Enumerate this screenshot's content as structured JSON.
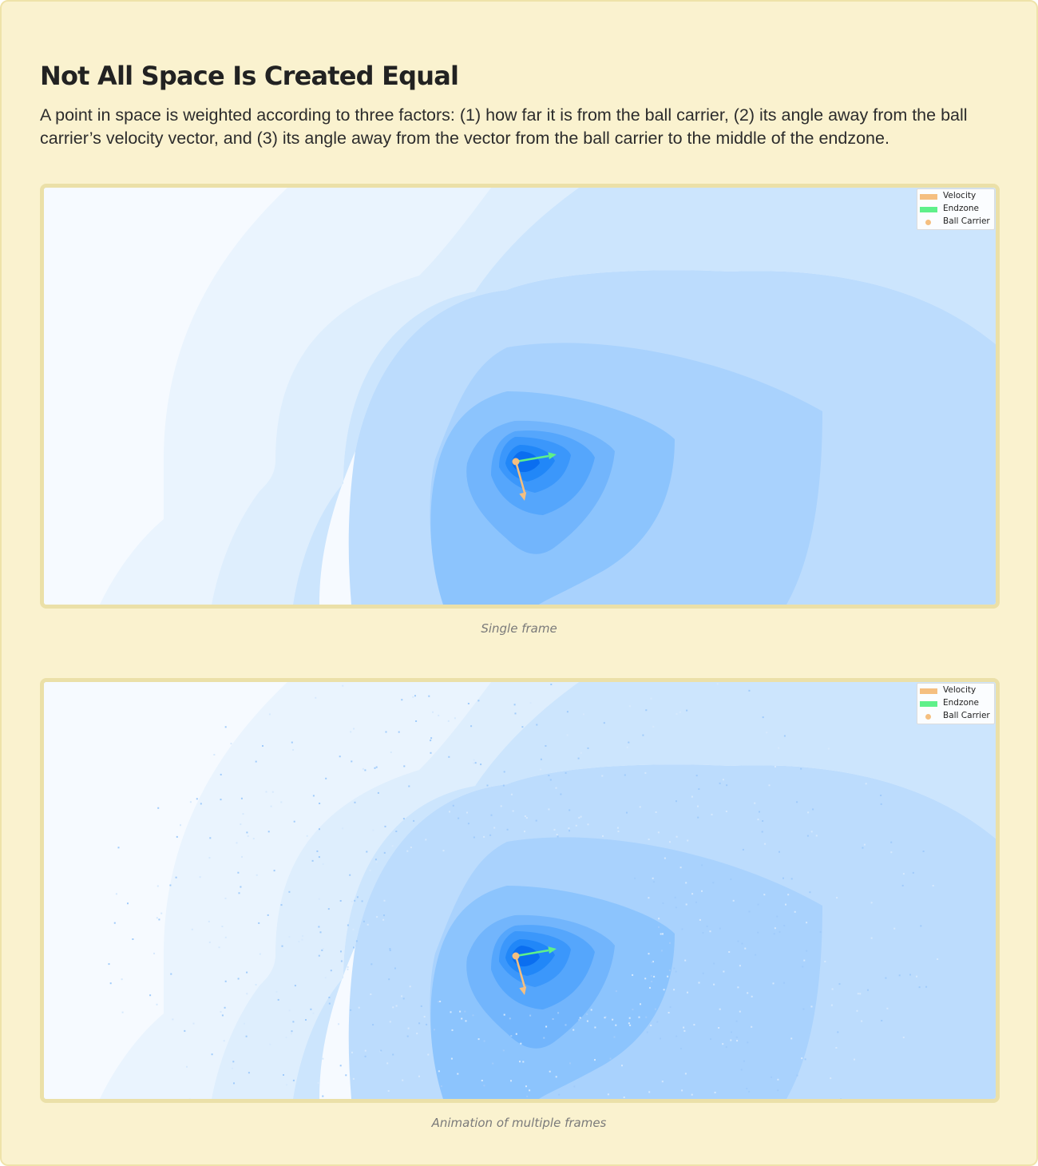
{
  "title": "Not All Space Is Created Equal",
  "description": "A point in space is weighted according to three factors: (1) how far it is from the ball carrier, (2) its angle away from the ball carrier’s velocity vector, and (3) its angle away from the vector from the ball carrier to the middle of the endzone.",
  "colors": {
    "background": "#faf2cf",
    "border": "#ebe0a8",
    "velocity": "#f5bf80",
    "endzone": "#5ff08a",
    "ball_carrier": "#f5bf80",
    "contour_low": "#f6faff",
    "contour_high": "#0a6ef0"
  },
  "figures": [
    {
      "caption": "Single frame",
      "legend": [
        {
          "label": "Velocity",
          "marker": "bar",
          "color": "#f5bf80"
        },
        {
          "label": "Endzone",
          "marker": "bar",
          "color": "#5ff08a"
        },
        {
          "label": "Ball Carrier",
          "marker": "dot",
          "color": "#f5bf80"
        }
      ]
    },
    {
      "caption": "Animation of multiple frames",
      "legend": [
        {
          "label": "Velocity",
          "marker": "bar",
          "color": "#f5bf80"
        },
        {
          "label": "Endzone",
          "marker": "bar",
          "color": "#5ff08a"
        },
        {
          "label": "Ball Carrier",
          "marker": "dot",
          "color": "#f5bf80"
        }
      ]
    }
  ],
  "chart_data": [
    {
      "type": "heatmap",
      "title": "",
      "xlabel": "",
      "ylabel": "",
      "grid": false,
      "legend_position": "top-right",
      "series": [
        {
          "name": "Velocity"
        },
        {
          "name": "Endzone"
        },
        {
          "name": "Ball Carrier"
        }
      ],
      "contour_levels": 12
    },
    {
      "type": "heatmap",
      "title": "",
      "xlabel": "",
      "ylabel": "",
      "grid": false,
      "legend_position": "top-right",
      "series": [
        {
          "name": "Velocity"
        },
        {
          "name": "Endzone"
        },
        {
          "name": "Ball Carrier"
        }
      ],
      "contour_levels": 12
    }
  ]
}
